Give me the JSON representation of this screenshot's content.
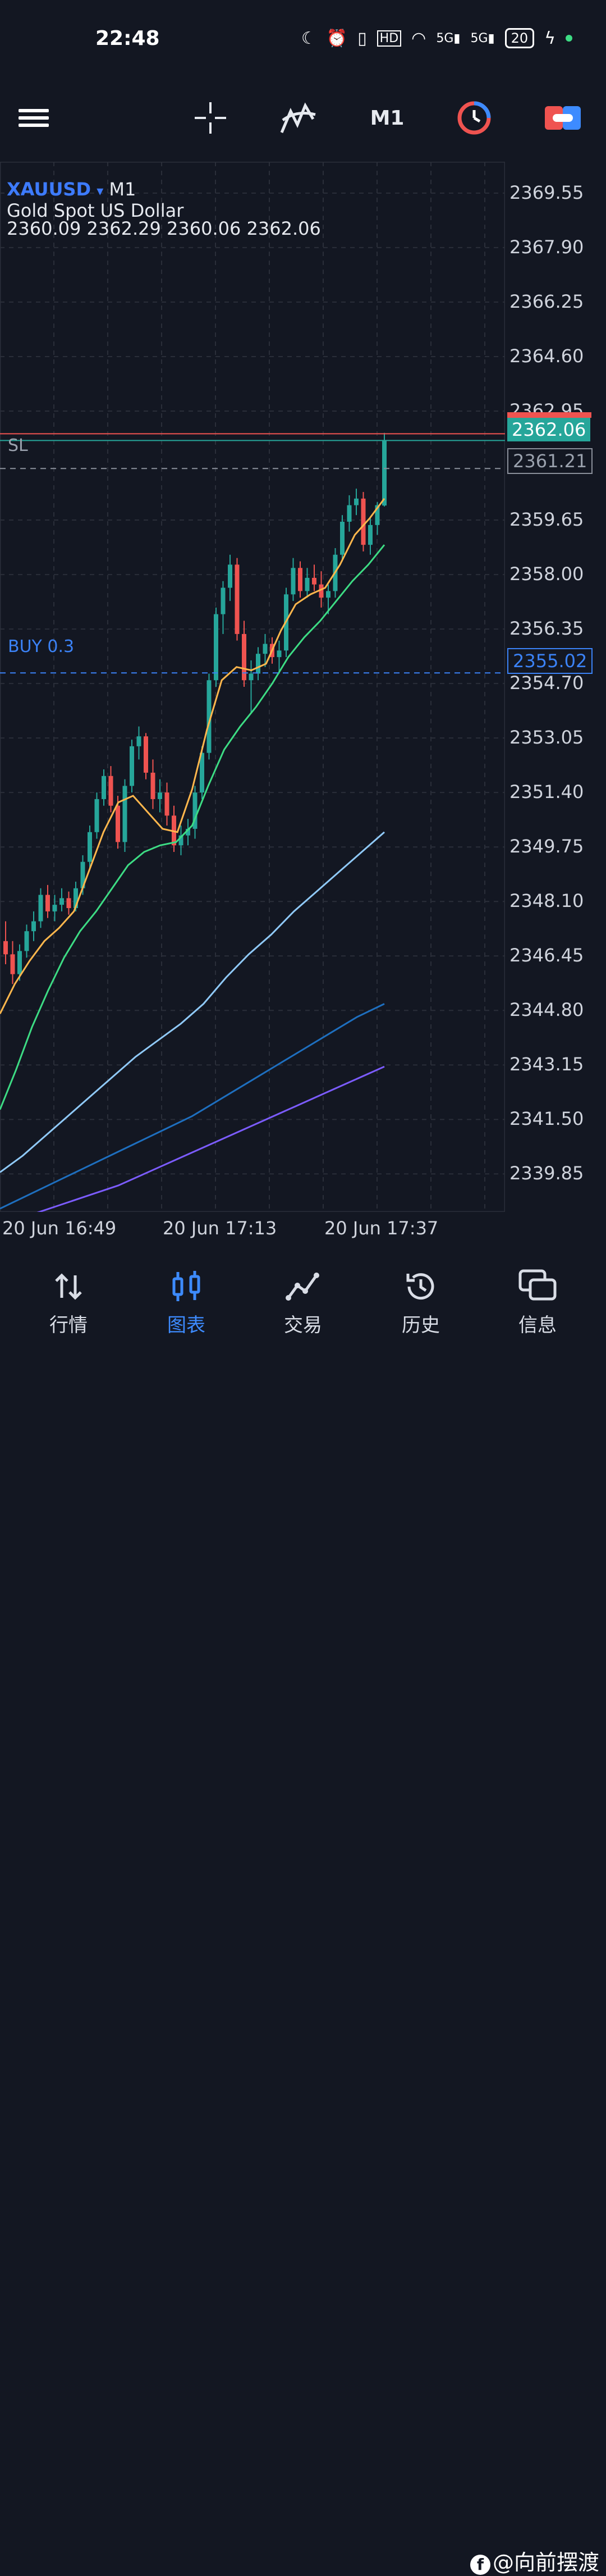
{
  "status_bar": {
    "time": "22:48",
    "battery": "20",
    "icons": [
      "moon-icon",
      "alarm-icon",
      "vibrate-icon",
      "hd-icon",
      "wifi-icon",
      "signal-5g-icon",
      "signal-5g-icon",
      "battery-icon",
      "charging-icon"
    ]
  },
  "toolbar": {
    "timeframe": "M1",
    "icons": [
      "menu-icon",
      "crosshair-icon",
      "indicators-icon",
      "timeframe",
      "clock-icon",
      "trade-toggle-icon"
    ]
  },
  "chart": {
    "symbol": "XAUUSD",
    "symbol_arrow": "▾",
    "timeframe": "M1",
    "name": "Gold Spot US Dollar",
    "ohlc": "2360.09 2362.29 2360.06 2362.06",
    "sl_label": "SL",
    "buy_label": "BUY 0.3",
    "current_price": "2362.06",
    "sl_price": "2361.21",
    "buy_price": "2355.02"
  },
  "chart_data": {
    "type": "line",
    "title": "",
    "price_ticks": [
      "2369.55",
      "2367.90",
      "2366.25",
      "2364.60",
      "2362.95",
      "2359.65",
      "2358.00",
      "2356.35",
      "2354.70",
      "2353.05",
      "2351.40",
      "2349.75",
      "2348.10",
      "2346.45",
      "2344.80",
      "2343.15",
      "2341.50",
      "2339.85"
    ],
    "time_labels": [
      "20 Jun 16:49",
      "20 Jun 17:13",
      "20 Jun 17:37"
    ],
    "ylim": [
      2338.7,
      2370.5
    ],
    "grid": true,
    "candles": [
      [
        2346.9,
        2347.5,
        2346.2,
        2346.5
      ],
      [
        2346.5,
        2346.9,
        2345.6,
        2345.9
      ],
      [
        2345.9,
        2346.8,
        2345.7,
        2346.6
      ],
      [
        2346.6,
        2347.4,
        2346.4,
        2347.2
      ],
      [
        2347.2,
        2347.8,
        2346.9,
        2347.5
      ],
      [
        2347.5,
        2348.5,
        2347.3,
        2348.3
      ],
      [
        2348.3,
        2348.6,
        2347.6,
        2347.8
      ],
      [
        2347.8,
        2348.3,
        2347.5,
        2348.0
      ],
      [
        2348.0,
        2348.5,
        2347.8,
        2348.2
      ],
      [
        2348.2,
        2348.4,
        2347.7,
        2347.9
      ],
      [
        2347.9,
        2348.7,
        2347.8,
        2348.5
      ],
      [
        2348.5,
        2349.5,
        2348.3,
        2349.3
      ],
      [
        2349.3,
        2350.4,
        2349.1,
        2350.2
      ],
      [
        2350.2,
        2351.4,
        2350.0,
        2351.2
      ],
      [
        2351.2,
        2352.1,
        2351.0,
        2351.9
      ],
      [
        2351.9,
        2352.2,
        2350.8,
        2351.0
      ],
      [
        2351.0,
        2351.3,
        2349.7,
        2349.9
      ],
      [
        2349.9,
        2351.8,
        2349.6,
        2351.6
      ],
      [
        2351.6,
        2353.0,
        2351.4,
        2352.8
      ],
      [
        2352.8,
        2353.4,
        2352.4,
        2353.1
      ],
      [
        2353.1,
        2353.2,
        2351.8,
        2352.0
      ],
      [
        2352.0,
        2352.4,
        2350.9,
        2351.2
      ],
      [
        2351.2,
        2351.8,
        2350.8,
        2351.4
      ],
      [
        2351.4,
        2351.7,
        2350.4,
        2350.7
      ],
      [
        2350.7,
        2351.0,
        2349.6,
        2349.8
      ],
      [
        2349.8,
        2350.4,
        2349.5,
        2350.1
      ],
      [
        2350.1,
        2350.6,
        2349.8,
        2350.3
      ],
      [
        2350.3,
        2351.6,
        2350.0,
        2351.4
      ],
      [
        2351.4,
        2352.8,
        2351.2,
        2352.6
      ],
      [
        2352.6,
        2355.0,
        2352.4,
        2354.8
      ],
      [
        2354.8,
        2357.0,
        2354.6,
        2356.8
      ],
      [
        2356.8,
        2357.8,
        2356.2,
        2357.6
      ],
      [
        2357.6,
        2358.6,
        2357.2,
        2358.3
      ],
      [
        2358.3,
        2358.5,
        2356.0,
        2356.2
      ],
      [
        2356.2,
        2356.6,
        2354.6,
        2354.8
      ],
      [
        2354.8,
        2355.4,
        2353.8,
        2355.0
      ],
      [
        2355.0,
        2355.8,
        2354.8,
        2355.6
      ],
      [
        2355.6,
        2356.2,
        2355.2,
        2355.9
      ],
      [
        2355.9,
        2356.1,
        2355.3,
        2355.5
      ],
      [
        2355.5,
        2356.0,
        2355.0,
        2355.7
      ],
      [
        2355.7,
        2357.6,
        2355.5,
        2357.4
      ],
      [
        2357.4,
        2358.5,
        2357.2,
        2358.2
      ],
      [
        2358.2,
        2358.4,
        2357.3,
        2357.5
      ],
      [
        2357.5,
        2358.2,
        2357.3,
        2357.9
      ],
      [
        2357.9,
        2358.3,
        2357.5,
        2357.7
      ],
      [
        2357.7,
        2358.1,
        2357.0,
        2357.3
      ],
      [
        2357.3,
        2357.7,
        2356.8,
        2357.5
      ],
      [
        2357.5,
        2358.8,
        2357.3,
        2358.6
      ],
      [
        2358.6,
        2359.8,
        2358.4,
        2359.6
      ],
      [
        2359.6,
        2360.4,
        2359.3,
        2360.1
      ],
      [
        2360.1,
        2360.6,
        2359.8,
        2360.3
      ],
      [
        2360.3,
        2360.5,
        2358.7,
        2358.9
      ],
      [
        2358.9,
        2359.7,
        2358.6,
        2359.5
      ],
      [
        2359.5,
        2360.2,
        2359.2,
        2360.1
      ],
      [
        2360.09,
        2362.29,
        2360.06,
        2362.06
      ]
    ],
    "series": [
      {
        "color": "#ffb74d",
        "values": [
          2344.7,
          2345.6,
          2346.3,
          2346.9,
          2347.3,
          2347.8,
          2349.0,
          2350.2,
          2351.1,
          2351.3,
          2350.8,
          2350.3,
          2350.2,
          2351.5,
          2353.3,
          2354.8,
          2355.2,
          2355.1,
          2355.3,
          2356.3,
          2357.1,
          2357.4,
          2357.6,
          2358.3,
          2359.2,
          2359.7,
          2360.3
        ]
      },
      {
        "color": "#3ddc84",
        "values": [
          2341.8,
          2343.0,
          2344.3,
          2345.4,
          2346.4,
          2347.2,
          2347.8,
          2348.5,
          2349.2,
          2349.6,
          2349.8,
          2349.9,
          2350.4,
          2351.6,
          2352.7,
          2353.4,
          2354.0,
          2354.7,
          2355.5,
          2356.1,
          2356.6,
          2357.2,
          2357.8,
          2358.3,
          2358.9
        ]
      },
      {
        "color": "#90caf9",
        "values": [
          2339.9,
          2340.4,
          2341.0,
          2341.6,
          2342.2,
          2342.8,
          2343.4,
          2343.9,
          2344.4,
          2345.0,
          2345.8,
          2346.5,
          2347.1,
          2347.8,
          2348.4,
          2349.0,
          2349.6,
          2350.2
        ]
      },
      {
        "color": "#1e6fbf",
        "values": [
          2338.8,
          2339.2,
          2339.6,
          2340.0,
          2340.4,
          2340.8,
          2341.2,
          2341.6,
          2342.1,
          2342.6,
          2343.1,
          2343.6,
          2344.1,
          2344.6,
          2345.0
        ]
      },
      {
        "color": "#7c5cff",
        "values": [
          2338.3,
          2338.6,
          2338.9,
          2339.2,
          2339.5,
          2339.9,
          2340.3,
          2340.7,
          2341.1,
          2341.5,
          2341.9,
          2342.3,
          2342.7,
          2343.1
        ]
      }
    ]
  },
  "bottom_nav": {
    "items": [
      {
        "label": "行情",
        "icon": "quotes-icon"
      },
      {
        "label": "图表",
        "icon": "chart-icon"
      },
      {
        "label": "交易",
        "icon": "trade-icon"
      },
      {
        "label": "历史",
        "icon": "history-icon"
      },
      {
        "label": "信息",
        "icon": "messages-icon"
      }
    ],
    "watermark": "@向前摆渡"
  },
  "colors": {
    "background": "#131722",
    "bull": "#26a69a",
    "bear": "#ef5350",
    "accent": "#3d8bff"
  }
}
